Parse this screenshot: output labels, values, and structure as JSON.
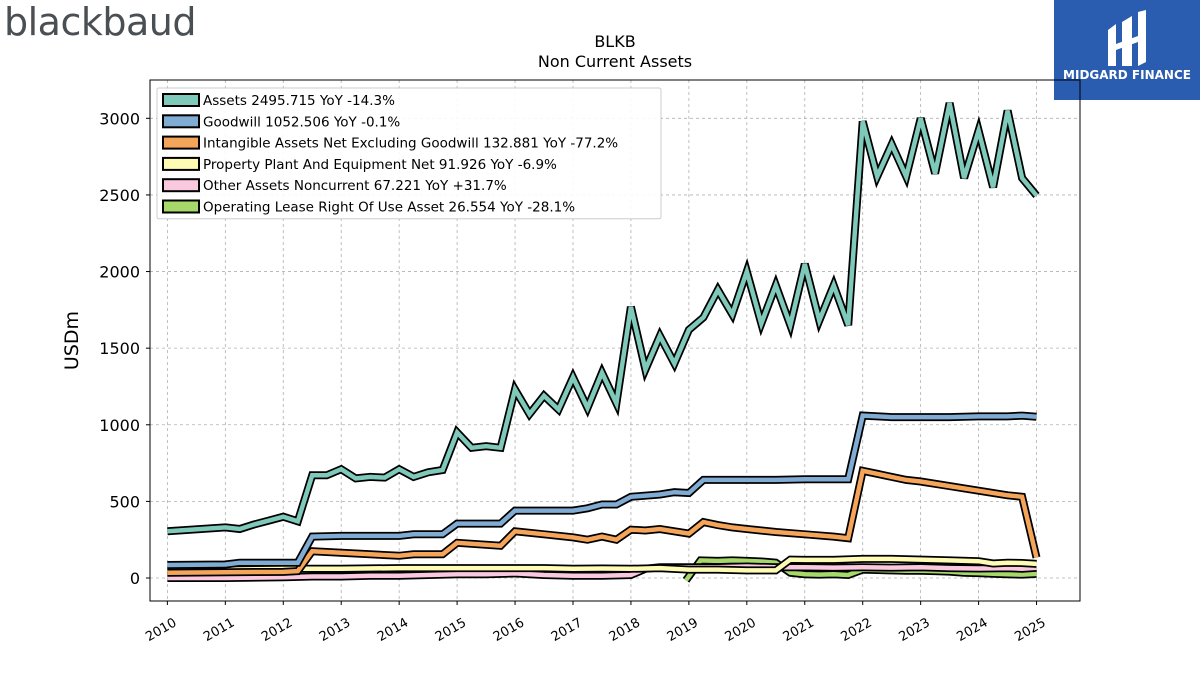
{
  "branding": {
    "left_logo": "blackbaud",
    "right_logo": "MIDGARD FINANCE"
  },
  "chart_data": {
    "type": "line",
    "title": "BLKB",
    "subtitle": "Non Current  Assets",
    "ylabel": "USDm",
    "xlabel": "",
    "xlim": [
      2009.7,
      2025.75
    ],
    "ylim": [
      -150,
      3250
    ],
    "yticks": [
      0,
      500,
      1000,
      1500,
      2000,
      2500,
      3000
    ],
    "xticks": [
      "2010",
      "2011",
      "2012",
      "2013",
      "2014",
      "2015",
      "2016",
      "2017",
      "2018",
      "2019",
      "2020",
      "2021",
      "2022",
      "2023",
      "2024",
      "2025"
    ],
    "grid": true,
    "legend_position": "top-left",
    "series": [
      {
        "name": "Assets",
        "legend": "Assets  2495.715 YoY -14.3%",
        "color": "#7fc9bb",
        "x": [
          2010.0,
          2011.0,
          2011.25,
          2011.5,
          2011.75,
          2012.0,
          2012.25,
          2012.5,
          2012.75,
          2013.0,
          2013.25,
          2013.5,
          2013.75,
          2014.0,
          2014.25,
          2014.5,
          2014.75,
          2015.0,
          2015.25,
          2015.5,
          2015.75,
          2016.0,
          2016.25,
          2016.5,
          2016.75,
          2017.0,
          2017.25,
          2017.5,
          2017.75,
          2018.0,
          2018.25,
          2018.5,
          2018.75,
          2019.0,
          2019.25,
          2019.5,
          2019.75,
          2020.0,
          2020.25,
          2020.5,
          2020.75,
          2021.0,
          2021.25,
          2021.5,
          2021.75,
          2022.0,
          2022.25,
          2022.5,
          2022.75,
          2023.0,
          2023.25,
          2023.5,
          2023.75,
          2024.0,
          2024.25,
          2024.5,
          2024.75,
          2025.0
        ],
        "y": [
          305,
          330,
          320,
          350,
          375,
          400,
          370,
          670,
          670,
          710,
          650,
          660,
          655,
          710,
          660,
          690,
          705,
          950,
          850,
          860,
          850,
          1230,
          1070,
          1190,
          1100,
          1310,
          1110,
          1340,
          1140,
          1770,
          1360,
          1580,
          1400,
          1620,
          1700,
          1880,
          1720,
          2000,
          1660,
          1910,
          1650,
          2050,
          1680,
          1910,
          1650,
          2980,
          2620,
          2830,
          2620,
          3000,
          2640,
          3100,
          2610,
          2920,
          2550,
          3050,
          2610,
          2496
        ]
      },
      {
        "name": "Goodwill",
        "legend": "Goodwill  1052.506 YoY -0.1%",
        "color": "#80acd4",
        "x": [
          2010.0,
          2011.0,
          2011.25,
          2012.25,
          2012.5,
          2013.0,
          2014.0,
          2014.25,
          2014.75,
          2015.0,
          2015.75,
          2016.0,
          2017.0,
          2017.25,
          2017.5,
          2017.75,
          2018.0,
          2018.5,
          2018.75,
          2019.0,
          2019.25,
          2020.0,
          2020.5,
          2021.0,
          2021.75,
          2022.0,
          2022.5,
          2023.0,
          2023.5,
          2024.0,
          2024.5,
          2024.75,
          2025.0
        ],
        "y": [
          85,
          88,
          100,
          100,
          270,
          275,
          275,
          285,
          285,
          355,
          355,
          440,
          440,
          455,
          480,
          480,
          530,
          545,
          560,
          555,
          640,
          640,
          640,
          645,
          645,
          1060,
          1050,
          1050,
          1050,
          1055,
          1055,
          1060,
          1052.5
        ]
      },
      {
        "name": "Intangible Assets Net Excluding Goodwill",
        "legend": "Intangible Assets Net Excluding Goodwill  132.881 YoY -77.2%",
        "color": "#f5a55a",
        "x": [
          2010.0,
          2011.0,
          2012.0,
          2012.25,
          2012.5,
          2013.0,
          2013.5,
          2014.0,
          2014.25,
          2014.75,
          2015.0,
          2015.75,
          2016.0,
          2016.5,
          2017.0,
          2017.25,
          2017.5,
          2017.75,
          2018.0,
          2018.25,
          2018.5,
          2019.0,
          2019.25,
          2019.5,
          2019.75,
          2020.0,
          2020.5,
          2021.0,
          2021.5,
          2021.75,
          2022.0,
          2022.25,
          2022.5,
          2022.75,
          2023.0,
          2023.5,
          2024.0,
          2024.5,
          2024.75,
          2025.0
        ],
        "y": [
          35,
          38,
          40,
          45,
          175,
          165,
          155,
          145,
          155,
          155,
          230,
          210,
          305,
          285,
          265,
          250,
          270,
          250,
          315,
          310,
          320,
          290,
          365,
          345,
          330,
          320,
          300,
          285,
          270,
          260,
          700,
          680,
          660,
          640,
          630,
          600,
          570,
          540,
          530,
          132.9
        ]
      },
      {
        "name": "Property Plant And Equipment Net",
        "legend": "Property Plant And Equipment Net  91.926 YoY -6.9%",
        "color": "#fefbb4",
        "x": [
          2010.0,
          2011.0,
          2012.0,
          2013.0,
          2014.0,
          2015.0,
          2015.5,
          2016.0,
          2016.5,
          2017.0,
          2017.5,
          2018.0,
          2018.5,
          2019.0,
          2019.25,
          2019.5,
          2020.0,
          2020.5,
          2020.75,
          2021.0,
          2021.5,
          2022.0,
          2022.5,
          2023.0,
          2023.5,
          2024.0,
          2024.25,
          2024.5,
          2024.75,
          2025.0
        ],
        "y": [
          55,
          55,
          60,
          60,
          65,
          65,
          65,
          65,
          65,
          60,
          62,
          60,
          65,
          55,
          55,
          55,
          50,
          50,
          120,
          118,
          118,
          125,
          125,
          120,
          115,
          110,
          95,
          100,
          98,
          91.9
        ]
      },
      {
        "name": "Other Assets Noncurrent",
        "legend": "Other Assets Noncurrent  67.221 YoY +31.7%",
        "color": "#fac9df",
        "x": [
          2010.0,
          2011.0,
          2012.0,
          2012.5,
          2013.0,
          2013.5,
          2014.0,
          2014.5,
          2015.0,
          2015.5,
          2016.0,
          2016.5,
          2017.0,
          2017.5,
          2018.0,
          2018.25,
          2018.5,
          2019.0,
          2019.5,
          2020.0,
          2020.5,
          2021.0,
          2021.5,
          2022.0,
          2022.5,
          2023.0,
          2023.5,
          2024.0,
          2024.5,
          2024.75,
          2025.0
        ],
        "y": [
          0,
          0,
          5,
          10,
          10,
          15,
          15,
          20,
          25,
          25,
          30,
          20,
          15,
          15,
          20,
          60,
          70,
          70,
          70,
          75,
          70,
          70,
          68,
          70,
          68,
          70,
          65,
          62,
          65,
          60,
          67.2
        ]
      },
      {
        "name": "Operating Lease Right Of Use Asset",
        "legend": "Operating Lease Right Of Use Asset  26.554 YoY -28.1%",
        "color": "#a6d96a",
        "x": [
          2018.95,
          2019.2,
          2019.5,
          2019.75,
          2020.0,
          2020.25,
          2020.5,
          2020.75,
          2021.0,
          2021.25,
          2021.5,
          2021.75,
          2022.0,
          2022.25,
          2022.5,
          2022.75,
          2023.0,
          2023.25,
          2023.5,
          2023.75,
          2024.0,
          2024.25,
          2024.5,
          2024.75,
          2025.0
        ],
        "y": [
          -15,
          115,
          112,
          115,
          112,
          108,
          100,
          35,
          25,
          22,
          25,
          20,
          55,
          52,
          50,
          48,
          48,
          45,
          42,
          35,
          32,
          28,
          24,
          22,
          26.6
        ]
      }
    ]
  }
}
